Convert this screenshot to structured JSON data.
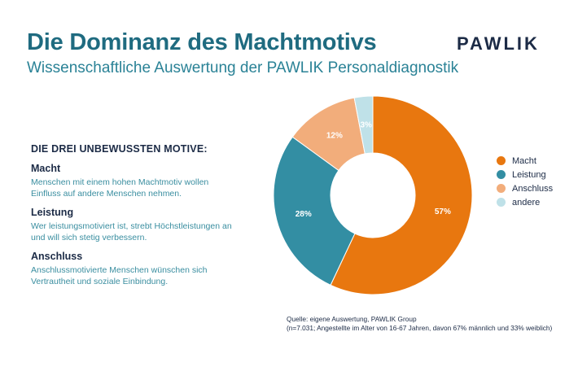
{
  "header": {
    "title": "Die Dominanz des Machtmotivs",
    "subtitle": "Wissenschaftliche Auswertung der PAWLIK Personaldiagnostik",
    "logo": "PAWLIK"
  },
  "motives": {
    "heading": "DIE DREI UNBEWUSSTEN MOTIVE:",
    "items": [
      {
        "title": "Macht",
        "desc": "Menschen mit einem hohen Machtmotiv wollen Einfluss auf andere Menschen nehmen."
      },
      {
        "title": "Leistung",
        "desc": "Wer leistungsmotiviert ist, strebt Höchstleistungen an und will sich stetig verbessern."
      },
      {
        "title": "Anschluss",
        "desc": "Anschlussmotivierte Menschen wünschen sich Vertrautheit und soziale Einbindung."
      }
    ]
  },
  "chart_data": {
    "type": "pie",
    "donut": true,
    "legend_position": "right",
    "slices": [
      {
        "label": "Macht",
        "value": 57,
        "display": "57%",
        "color": "#e8770f"
      },
      {
        "label": "Leistung",
        "value": 28,
        "display": "28%",
        "color": "#338ea3"
      },
      {
        "label": "Anschluss",
        "value": 12,
        "display": "12%",
        "color": "#f2ad7b"
      },
      {
        "label": "andere",
        "value": 3,
        "display": "3%",
        "color": "#bfe1e8"
      }
    ]
  },
  "source": {
    "line1": "Quelle: eigene Auswertung, PAWLIK Group",
    "line2": "(n=7.031; Angestellte im Alter von 16-67 Jahren, davon 67% männlich und 33% weiblich)"
  }
}
